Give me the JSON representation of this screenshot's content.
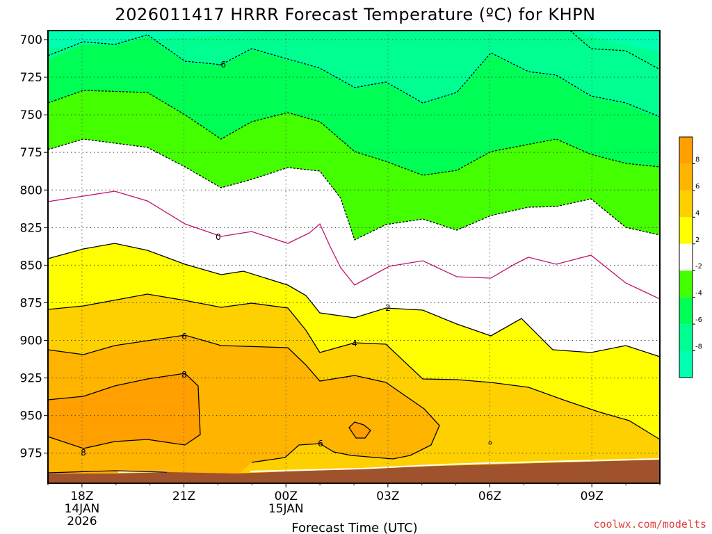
{
  "title": "2026011417 HRRR Forecast Temperature (ºC) for KHPN",
  "xlabel": "Forecast Time (UTC)",
  "credit": "coolwx.com/modelts",
  "chart_data": {
    "type": "heatmap",
    "title": "2026011417 HRRR Forecast Temperature (ºC) for KHPN",
    "xlabel": "Forecast Time (UTC)",
    "ylabel": "",
    "x_ticks": [
      {
        "hour": 1,
        "label": "18Z",
        "date": "14JAN",
        "year": "2026"
      },
      {
        "hour": 4,
        "label": "21Z"
      },
      {
        "hour": 7,
        "label": "00Z",
        "date": "15JAN"
      },
      {
        "hour": 10,
        "label": "03Z"
      },
      {
        "hour": 13,
        "label": "06Z"
      },
      {
        "hour": 16,
        "label": "09Z"
      }
    ],
    "xlim": [
      0,
      18
    ],
    "y_ticks": [
      700,
      725,
      750,
      775,
      800,
      825,
      850,
      875,
      900,
      925,
      950,
      975
    ],
    "ylim": [
      694,
      995
    ],
    "grid": true,
    "colorbar": {
      "labels": [
        "8",
        "6",
        "4",
        "2",
        "-2",
        "-4",
        "-6",
        "-8"
      ],
      "bands": [
        {
          "range": "8 to 10",
          "color": "#ff9f00"
        },
        {
          "range": "6 to 8",
          "color": "#ffb400"
        },
        {
          "range": "4 to 6",
          "color": "#ffd000"
        },
        {
          "range": "2 to 4",
          "color": "#ffff00"
        },
        {
          "range": "-2 to 2",
          "color": "#ffffff"
        },
        {
          "range": "-4 to -2",
          "color": "#44ff00"
        },
        {
          "range": "-6 to -4",
          "color": "#00ff55"
        },
        {
          "range": "-8 to -6",
          "color": "#00ff90"
        },
        {
          "range": "-10 to -8",
          "color": "#00ffb0"
        }
      ]
    },
    "contour_labels": [
      "-6",
      "0",
      "2",
      "4",
      "6",
      "8",
      "6",
      "8"
    ],
    "colors": {
      "ground": "#a0522d",
      "zero_line": "#c0106e",
      "band_8_10": "#ff9f00",
      "band_6_8": "#ffb400",
      "band_4_6": "#ffd000",
      "band_2_4": "#ffff00",
      "band_m2_2": "#ffffff",
      "band_m4_m2": "#44ff00",
      "band_m6_m4": "#00ff55",
      "band_m8_m6": "#00ff90",
      "band_m10_m8": "#00ffb0"
    }
  }
}
